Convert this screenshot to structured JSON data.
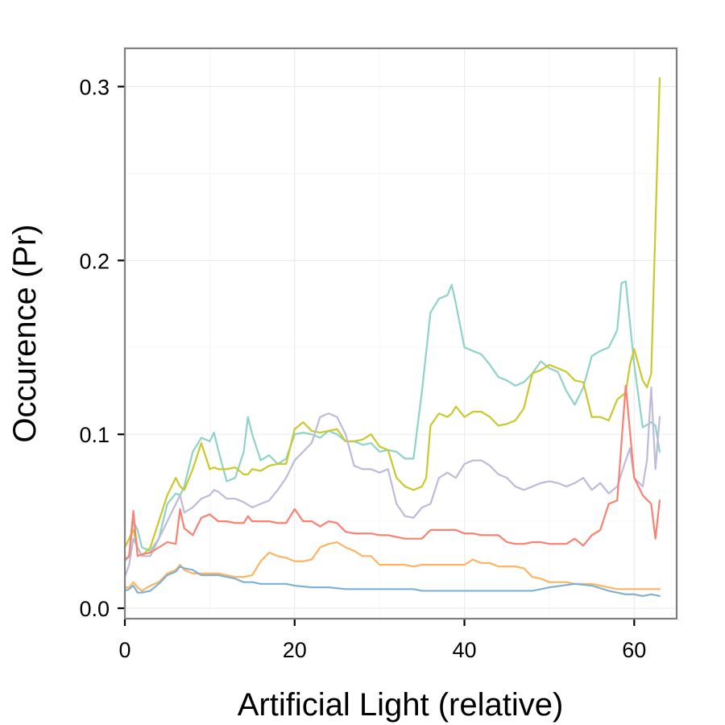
{
  "chart_data": {
    "type": "line",
    "title": "",
    "xlabel": "Artificial Light (relative)",
    "ylabel": "Occurence (Pr)",
    "xlim": [
      0,
      65
    ],
    "ylim": [
      -0.006,
      0.322
    ],
    "x_ticks": [
      0,
      20,
      40,
      60
    ],
    "x_tick_labels": [
      "0",
      "20",
      "40",
      "60"
    ],
    "y_ticks": [
      0.0,
      0.1,
      0.2,
      0.3
    ],
    "y_tick_labels": [
      "0.0",
      "0.1",
      "0.2",
      "0.3"
    ],
    "x_minor": [
      10,
      30,
      50
    ],
    "y_minor": [
      0.05,
      0.15,
      0.25
    ],
    "grid": true,
    "legend": "none",
    "series": [
      {
        "color": "#8dd3c7",
        "x": [
          0,
          0.5,
          1,
          1.5,
          2,
          3,
          4,
          5,
          6,
          6.5,
          7,
          8,
          9,
          10,
          10.5,
          11,
          12,
          13,
          14,
          14.5,
          15,
          16,
          17,
          18,
          19,
          20,
          21,
          22,
          23,
          24,
          25,
          26,
          27,
          28,
          29,
          30,
          31,
          32,
          33,
          34,
          35,
          36,
          37,
          38,
          38.5,
          39,
          40,
          41,
          42,
          43,
          44,
          45,
          46,
          47,
          48,
          49,
          50,
          51,
          52,
          53,
          54,
          55,
          56,
          57,
          58,
          58.5,
          59,
          60,
          61,
          62,
          62.5,
          63
        ],
        "y": [
          0.027,
          0.03,
          0.05,
          0.045,
          0.035,
          0.033,
          0.04,
          0.06,
          0.066,
          0.065,
          0.07,
          0.09,
          0.098,
          0.096,
          0.101,
          0.091,
          0.073,
          0.075,
          0.09,
          0.11,
          0.1,
          0.085,
          0.088,
          0.083,
          0.086,
          0.1,
          0.101,
          0.1,
          0.098,
          0.102,
          0.1,
          0.096,
          0.096,
          0.094,
          0.095,
          0.09,
          0.091,
          0.09,
          0.086,
          0.086,
          0.125,
          0.17,
          0.178,
          0.18,
          0.186,
          0.175,
          0.15,
          0.148,
          0.146,
          0.14,
          0.133,
          0.131,
          0.128,
          0.13,
          0.135,
          0.142,
          0.138,
          0.136,
          0.125,
          0.117,
          0.127,
          0.145,
          0.148,
          0.15,
          0.16,
          0.187,
          0.188,
          0.14,
          0.104,
          0.107,
          0.105,
          0.09
        ]
      },
      {
        "color": "#c9c92b",
        "x": [
          0,
          0.5,
          1,
          1.5,
          2,
          3,
          4,
          5,
          6,
          6.5,
          7,
          8,
          9,
          10,
          10.5,
          11,
          12,
          13,
          14,
          14.5,
          15,
          16,
          17,
          18,
          19,
          20,
          21,
          22,
          23,
          24,
          25,
          26,
          27,
          28,
          29,
          30,
          31,
          32,
          33,
          34,
          35,
          35.5,
          36,
          37,
          38,
          38.5,
          39,
          40,
          41,
          42,
          43,
          44,
          45,
          46,
          47,
          48,
          49,
          50,
          51,
          52,
          53,
          54,
          55,
          56,
          57,
          58,
          59,
          59.5,
          60,
          61,
          61.5,
          62,
          63
        ],
        "y": [
          0.035,
          0.04,
          0.045,
          0.035,
          0.03,
          0.035,
          0.05,
          0.065,
          0.075,
          0.07,
          0.068,
          0.08,
          0.095,
          0.08,
          0.081,
          0.08,
          0.08,
          0.081,
          0.077,
          0.077,
          0.08,
          0.079,
          0.082,
          0.083,
          0.083,
          0.103,
          0.107,
          0.102,
          0.101,
          0.102,
          0.103,
          0.096,
          0.096,
          0.097,
          0.1,
          0.093,
          0.091,
          0.075,
          0.07,
          0.068,
          0.07,
          0.075,
          0.105,
          0.112,
          0.11,
          0.112,
          0.116,
          0.11,
          0.113,
          0.113,
          0.11,
          0.105,
          0.106,
          0.108,
          0.115,
          0.135,
          0.137,
          0.14,
          0.138,
          0.136,
          0.131,
          0.13,
          0.11,
          0.11,
          0.108,
          0.12,
          0.124,
          0.14,
          0.149,
          0.131,
          0.127,
          0.135,
          0.305
        ]
      },
      {
        "color": "#bebada",
        "x": [
          0,
          0.5,
          1,
          1.5,
          2,
          3,
          4,
          5,
          6,
          6.5,
          7,
          8,
          9,
          10,
          10.5,
          11,
          12,
          13,
          14,
          15,
          16,
          17,
          18,
          19,
          20,
          21,
          22,
          23,
          24,
          25,
          26,
          27,
          28,
          29,
          30,
          31,
          32,
          33,
          34,
          35,
          36,
          37,
          38,
          39,
          40,
          41,
          42,
          43,
          44,
          45,
          46,
          47,
          48,
          49,
          50,
          51,
          52,
          53,
          54,
          55,
          56,
          57,
          58,
          59,
          59.5,
          60,
          61,
          61.5,
          62,
          62.5,
          63
        ],
        "y": [
          0.018,
          0.025,
          0.04,
          0.035,
          0.03,
          0.03,
          0.04,
          0.05,
          0.06,
          0.065,
          0.055,
          0.058,
          0.063,
          0.065,
          0.068,
          0.067,
          0.063,
          0.063,
          0.061,
          0.058,
          0.06,
          0.062,
          0.068,
          0.075,
          0.085,
          0.09,
          0.095,
          0.11,
          0.112,
          0.11,
          0.1,
          0.082,
          0.08,
          0.08,
          0.078,
          0.08,
          0.06,
          0.053,
          0.052,
          0.058,
          0.06,
          0.075,
          0.078,
          0.075,
          0.083,
          0.085,
          0.085,
          0.082,
          0.077,
          0.075,
          0.07,
          0.068,
          0.07,
          0.072,
          0.073,
          0.072,
          0.07,
          0.072,
          0.075,
          0.068,
          0.072,
          0.066,
          0.07,
          0.085,
          0.092,
          0.075,
          0.07,
          0.085,
          0.127,
          0.08,
          0.11
        ]
      },
      {
        "color": "#fb8072",
        "x": [
          0,
          0.5,
          1,
          1.5,
          2,
          3,
          4,
          5,
          6,
          6.5,
          7,
          8,
          9,
          10,
          11,
          12,
          13,
          14,
          14.5,
          15,
          16,
          17,
          18,
          19,
          20,
          21,
          22,
          23,
          24,
          25,
          26,
          27,
          28,
          29,
          30,
          31,
          32,
          33,
          34,
          35,
          36,
          37,
          38,
          39,
          40,
          41,
          42,
          43,
          44,
          45,
          46,
          47,
          48,
          49,
          50,
          51,
          52,
          53,
          54,
          55,
          56,
          57,
          58,
          59,
          60,
          61,
          62,
          62.5,
          63
        ],
        "y": [
          0.028,
          0.03,
          0.056,
          0.03,
          0.031,
          0.032,
          0.035,
          0.038,
          0.037,
          0.057,
          0.046,
          0.042,
          0.052,
          0.054,
          0.05,
          0.05,
          0.049,
          0.049,
          0.053,
          0.05,
          0.05,
          0.05,
          0.049,
          0.049,
          0.057,
          0.05,
          0.05,
          0.047,
          0.05,
          0.049,
          0.044,
          0.043,
          0.043,
          0.043,
          0.042,
          0.042,
          0.041,
          0.04,
          0.04,
          0.04,
          0.045,
          0.045,
          0.045,
          0.045,
          0.043,
          0.043,
          0.042,
          0.042,
          0.042,
          0.038,
          0.037,
          0.037,
          0.038,
          0.038,
          0.037,
          0.037,
          0.037,
          0.04,
          0.036,
          0.042,
          0.045,
          0.06,
          0.062,
          0.128,
          0.075,
          0.065,
          0.06,
          0.04,
          0.062
        ]
      },
      {
        "color": "#fdb462",
        "x": [
          0,
          0.5,
          1,
          1.5,
          2,
          3,
          4,
          5,
          6,
          6.5,
          7,
          8,
          9,
          10,
          11,
          12,
          13,
          14,
          15,
          16,
          17,
          18,
          19,
          20,
          21,
          22,
          23,
          24,
          25,
          26,
          27,
          28,
          29,
          30,
          31,
          32,
          33,
          34,
          35,
          36,
          37,
          38,
          39,
          40,
          41,
          42,
          43,
          44,
          45,
          46,
          47,
          48,
          49,
          50,
          51,
          52,
          53,
          54,
          55,
          56,
          57,
          58,
          59,
          60,
          61,
          62,
          63
        ],
        "y": [
          0.012,
          0.012,
          0.015,
          0.012,
          0.01,
          0.013,
          0.015,
          0.02,
          0.022,
          0.025,
          0.022,
          0.02,
          0.02,
          0.02,
          0.02,
          0.019,
          0.018,
          0.018,
          0.019,
          0.027,
          0.032,
          0.03,
          0.029,
          0.027,
          0.027,
          0.028,
          0.035,
          0.037,
          0.038,
          0.035,
          0.033,
          0.03,
          0.03,
          0.025,
          0.025,
          0.025,
          0.025,
          0.024,
          0.025,
          0.025,
          0.025,
          0.025,
          0.025,
          0.025,
          0.028,
          0.026,
          0.026,
          0.024,
          0.024,
          0.024,
          0.023,
          0.018,
          0.017,
          0.015,
          0.015,
          0.015,
          0.014,
          0.014,
          0.014,
          0.013,
          0.012,
          0.011,
          0.011,
          0.011,
          0.011,
          0.011,
          0.011
        ]
      },
      {
        "color": "#80b1d3",
        "x": [
          0,
          0.5,
          1,
          1.5,
          2,
          3,
          4,
          5,
          6,
          6.5,
          7,
          8,
          9,
          10,
          11,
          12,
          13,
          14,
          15,
          16,
          17,
          18,
          19,
          20,
          22,
          24,
          26,
          28,
          30,
          32,
          33,
          34,
          35,
          37,
          40,
          45,
          48,
          50,
          53,
          55,
          57,
          59,
          60,
          61,
          62,
          63
        ],
        "y": [
          0.01,
          0.011,
          0.013,
          0.009,
          0.009,
          0.01,
          0.014,
          0.019,
          0.021,
          0.024,
          0.023,
          0.022,
          0.019,
          0.019,
          0.019,
          0.018,
          0.017,
          0.015,
          0.015,
          0.014,
          0.014,
          0.014,
          0.014,
          0.013,
          0.012,
          0.012,
          0.011,
          0.011,
          0.011,
          0.011,
          0.011,
          0.011,
          0.01,
          0.01,
          0.01,
          0.01,
          0.01,
          0.012,
          0.014,
          0.013,
          0.01,
          0.008,
          0.008,
          0.007,
          0.008,
          0.007
        ]
      }
    ]
  }
}
